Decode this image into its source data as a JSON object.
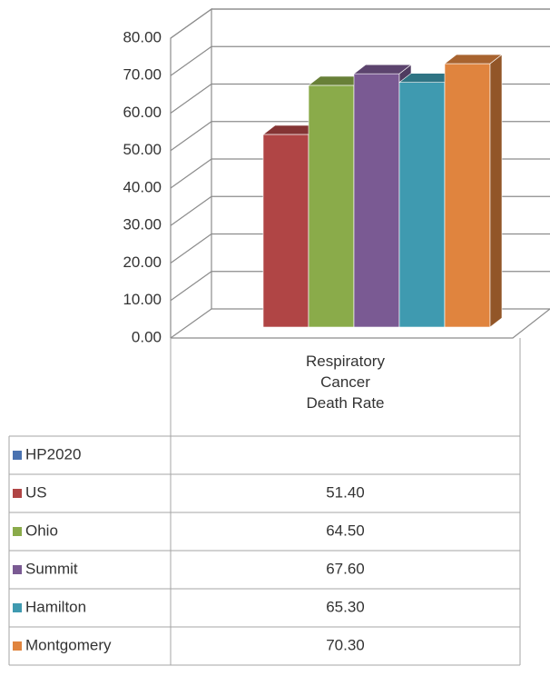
{
  "chart_data": {
    "type": "bar3d",
    "categories": [
      "Respiratory Cancer Death Rate"
    ],
    "series": [
      {
        "name": "HP2020",
        "color": "#4a72b0",
        "values": [
          null
        ],
        "value_labels": [
          null
        ]
      },
      {
        "name": "US",
        "color": "#b04545",
        "values": [
          51.4
        ],
        "value_labels": [
          "51.40"
        ]
      },
      {
        "name": "Ohio",
        "color": "#8aab4a",
        "values": [
          64.5
        ],
        "value_labels": [
          "64.50"
        ]
      },
      {
        "name": "Summit",
        "color": "#7a5a93",
        "values": [
          67.6
        ],
        "value_labels": [
          "67.60"
        ]
      },
      {
        "name": "Hamilton",
        "color": "#3f9ab0",
        "values": [
          65.3
        ],
        "value_labels": [
          "65.30"
        ]
      },
      {
        "name": "Montgomery",
        "color": "#e0843e",
        "values": [
          70.3
        ],
        "value_labels": [
          "70.30"
        ]
      }
    ],
    "ylim": [
      0,
      80
    ],
    "yticks": [
      {
        "value": 0,
        "label": "0.00"
      },
      {
        "value": 10,
        "label": "10.00"
      },
      {
        "value": 20,
        "label": "20.00"
      },
      {
        "value": 30,
        "label": "30.00"
      },
      {
        "value": 40,
        "label": "40.00"
      },
      {
        "value": 50,
        "label": "50.00"
      },
      {
        "value": 60,
        "label": "60.00"
      },
      {
        "value": 70,
        "label": "70.00"
      },
      {
        "value": 80,
        "label": "80.00"
      }
    ],
    "grid": true
  }
}
